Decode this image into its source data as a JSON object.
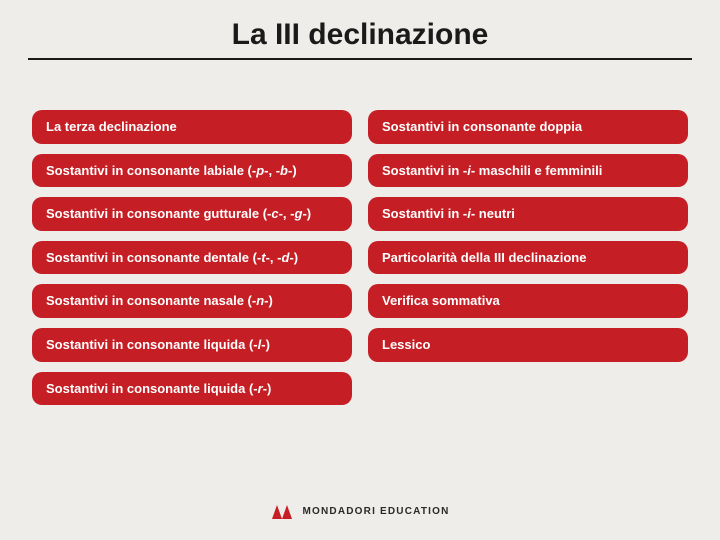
{
  "header": {
    "title": "La III declinazione"
  },
  "columns": {
    "left": [
      {
        "label": "La terza declinazione"
      },
      {
        "label": "Sostantivi in consonante labiale (-<i>p</i>-, -<i>b</i>-)"
      },
      {
        "label": "Sostantivi in consonante gutturale (-<i>c</i>-, -<i>g</i>-)"
      },
      {
        "label": "Sostantivi in consonante dentale (-<i>t</i>-, -<i>d</i>-)"
      },
      {
        "label": "Sostantivi in consonante nasale (-<i>n</i>-)"
      },
      {
        "label": "Sostantivi in consonante liquida (-<i>l</i>-)"
      },
      {
        "label": "Sostantivi in consonante liquida (-<i>r</i>-)"
      }
    ],
    "right": [
      {
        "label": "Sostantivi in consonante doppia"
      },
      {
        "label": "Sostantivi in -<i>i</i>- maschili e femminili"
      },
      {
        "label": "Sostantivi in -<i>i</i>- neutri"
      },
      {
        "label": "Particolarità della III declinazione"
      },
      {
        "label": "Verifica sommativa"
      },
      {
        "label": "Lessico"
      }
    ]
  },
  "footer": {
    "brand": "MONDADORI EDUCATION",
    "logo_color": "#c51e24"
  },
  "style": {
    "pill_bg": "#c51e24",
    "pill_fg": "#ffffff",
    "page_bg": "#eeede9",
    "title_color": "#1a1a1a"
  }
}
